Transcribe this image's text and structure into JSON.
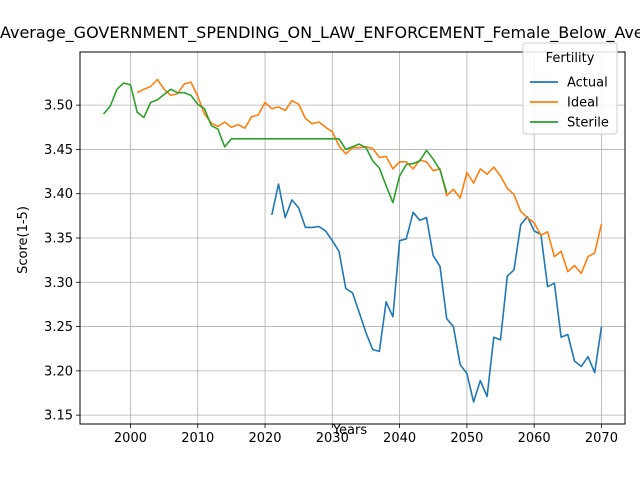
{
  "chart_data": {
    "type": "line",
    "title": "Average_GOVERNMENT_SPENDING_ON_LAW_ENFORCEMENT_Female_Below_Average",
    "xlabel": "Years",
    "ylabel": "Score(1-5)",
    "xlim": [
      1992.5,
      2073.5
    ],
    "ylim": [
      3.14,
      3.56
    ],
    "xticks": [
      2000,
      2010,
      2020,
      2030,
      2040,
      2050,
      2060,
      2070
    ],
    "yticks": [
      3.15,
      3.2,
      3.25,
      3.3,
      3.35,
      3.4,
      3.45,
      3.5
    ],
    "ytick_labels": [
      "3.15",
      "3.20",
      "3.25",
      "3.30",
      "3.35",
      "3.40",
      "3.45",
      "3.50"
    ],
    "grid": true,
    "legend": {
      "title": "Fertility",
      "placement": "top-right"
    },
    "series": [
      {
        "name": "Actual",
        "color": "#1f77b4",
        "x": [
          2021,
          2022,
          2023,
          2024,
          2025,
          2026,
          2027,
          2028,
          2029,
          2030,
          2031,
          2032,
          2033,
          2034,
          2035,
          2036,
          2037,
          2038,
          2039,
          2040,
          2041,
          2042,
          2043,
          2044,
          2045,
          2046,
          2047,
          2048,
          2049,
          2050,
          2051,
          2052,
          2053,
          2054,
          2055,
          2056,
          2057,
          2058,
          2059,
          2060,
          2061,
          2062,
          2063,
          2064,
          2065,
          2066,
          2067,
          2068,
          2069,
          2070
        ],
        "y": [
          3.376,
          3.411,
          3.373,
          3.393,
          3.384,
          3.362,
          3.362,
          3.363,
          3.358,
          3.347,
          3.335,
          3.293,
          3.288,
          3.266,
          3.243,
          3.224,
          3.222,
          3.278,
          3.261,
          3.347,
          3.349,
          3.379,
          3.37,
          3.373,
          3.33,
          3.318,
          3.259,
          3.25,
          3.207,
          3.197,
          3.165,
          3.189,
          3.171,
          3.238,
          3.235,
          3.307,
          3.314,
          3.365,
          3.374,
          3.358,
          3.354,
          3.295,
          3.299,
          3.238,
          3.241,
          3.211,
          3.205,
          3.216,
          3.198,
          3.25
        ]
      },
      {
        "name": "Ideal",
        "color": "#ff7f0e",
        "x": [
          2001,
          2002,
          2003,
          2004,
          2005,
          2006,
          2007,
          2008,
          2009,
          2010,
          2011,
          2012,
          2013,
          2014,
          2015,
          2016,
          2017,
          2018,
          2019,
          2020,
          2021,
          2022,
          2023,
          2024,
          2025,
          2026,
          2027,
          2028,
          2029,
          2030,
          2031,
          2032,
          2033,
          2034,
          2035,
          2036,
          2037,
          2038,
          2039,
          2040,
          2041,
          2042,
          2043,
          2044,
          2045,
          2046,
          2047,
          2048,
          2049,
          2050,
          2051,
          2052,
          2053,
          2054,
          2055,
          2056,
          2057,
          2058,
          2059,
          2060,
          2061,
          2062,
          2063,
          2064,
          2065,
          2066,
          2067,
          2068,
          2069,
          2070
        ],
        "y": [
          3.514,
          3.518,
          3.521,
          3.529,
          3.518,
          3.511,
          3.513,
          3.524,
          3.526,
          3.51,
          3.49,
          3.48,
          3.476,
          3.481,
          3.475,
          3.478,
          3.474,
          3.487,
          3.489,
          3.503,
          3.496,
          3.498,
          3.494,
          3.505,
          3.501,
          3.485,
          3.479,
          3.481,
          3.475,
          3.47,
          3.454,
          3.445,
          3.452,
          3.452,
          3.453,
          3.451,
          3.441,
          3.442,
          3.428,
          3.436,
          3.436,
          3.428,
          3.438,
          3.436,
          3.426,
          3.428,
          3.398,
          3.405,
          3.395,
          3.424,
          3.412,
          3.428,
          3.422,
          3.43,
          3.42,
          3.406,
          3.399,
          3.38,
          3.373,
          3.367,
          3.353,
          3.357,
          3.329,
          3.335,
          3.312,
          3.319,
          3.31,
          3.329,
          3.333,
          3.366
        ]
      },
      {
        "name": "Sterile",
        "color": "#2ca02c",
        "x": [
          1996,
          1997,
          1998,
          1999,
          2000,
          2001,
          2002,
          2003,
          2004,
          2005,
          2006,
          2007,
          2008,
          2009,
          2010,
          2011,
          2012,
          2013,
          2014,
          2015,
          2016,
          2017,
          2018,
          2019,
          2020,
          2021,
          2022,
          2023,
          2024,
          2025,
          2026,
          2027,
          2028,
          2029,
          2030,
          2031,
          2032,
          2033,
          2034,
          2035,
          2036,
          2037,
          2038,
          2039,
          2040,
          2041,
          2042,
          2043,
          2044,
          2045,
          2046,
          2047
        ],
        "y": [
          3.49,
          3.499,
          3.518,
          3.525,
          3.523,
          3.492,
          3.486,
          3.503,
          3.506,
          3.512,
          3.518,
          3.514,
          3.514,
          3.511,
          3.501,
          3.496,
          3.477,
          3.473,
          3.453,
          3.462,
          3.462,
          3.462,
          3.462,
          3.462,
          3.462,
          3.462,
          3.462,
          3.462,
          3.462,
          3.462,
          3.462,
          3.462,
          3.462,
          3.462,
          3.462,
          3.462,
          3.45,
          3.453,
          3.456,
          3.452,
          3.437,
          3.429,
          3.409,
          3.39,
          3.42,
          3.433,
          3.434,
          3.437,
          3.449,
          3.439,
          3.427,
          3.401
        ]
      }
    ]
  }
}
